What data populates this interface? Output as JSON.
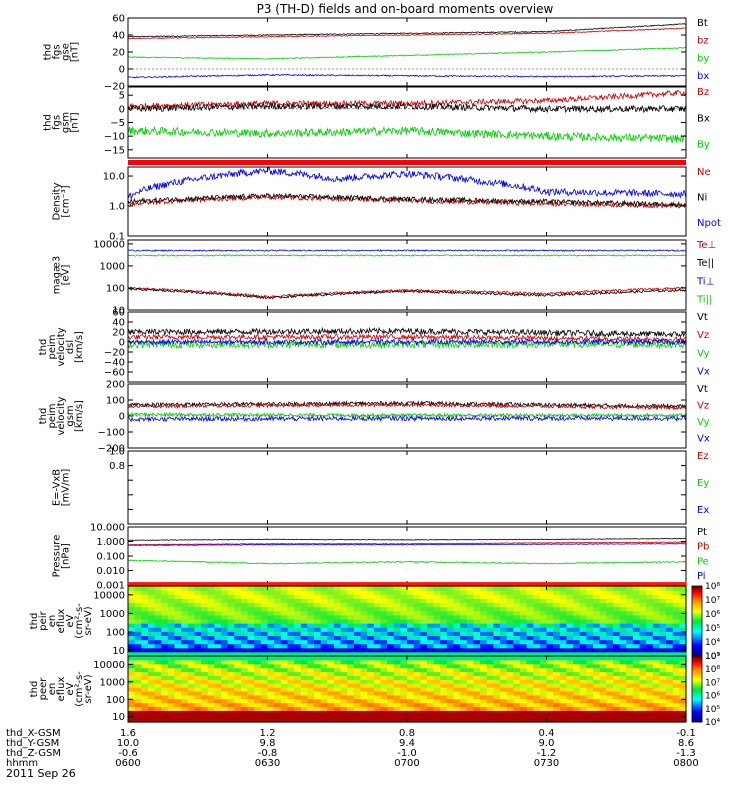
{
  "title": "P3 (TH-D) fields and on-board moments overview",
  "date_label": "2011 Sep 26",
  "chart_data": [
    {
      "type": "line",
      "panel_id": "fgs-gse",
      "ylabel": [
        "thd",
        "fgs",
        "gse",
        "[nT]"
      ],
      "ylim": [
        -20,
        60
      ],
      "ticks": [
        -20,
        0,
        20,
        40,
        60
      ],
      "tick_labels": [
        "−20",
        "0",
        "20",
        "40",
        "60"
      ],
      "scale": "linear",
      "series": [
        {
          "name": "Bt",
          "color": "#000000",
          "anchors": [
            [
              0,
              38
            ],
            [
              30,
              40
            ],
            [
              60,
              42
            ],
            [
              90,
              44
            ],
            [
              120,
              53
            ]
          ],
          "noise": 0.6
        },
        {
          "name": "bz",
          "color": "#d00000",
          "anchors": [
            [
              0,
              36
            ],
            [
              30,
              38
            ],
            [
              60,
              40
            ],
            [
              90,
              42
            ],
            [
              120,
              48
            ]
          ],
          "noise": 0.6
        },
        {
          "name": "by",
          "color": "#00d000",
          "anchors": [
            [
              0,
              14
            ],
            [
              30,
              12
            ],
            [
              60,
              16
            ],
            [
              90,
              20
            ],
            [
              120,
              25
            ]
          ],
          "noise": 0.6
        },
        {
          "name": "bx",
          "color": "#0000ff",
          "anchors": [
            [
              0,
              -10
            ],
            [
              30,
              -7
            ],
            [
              60,
              -8
            ],
            [
              90,
              -9
            ],
            [
              120,
              -8
            ]
          ],
          "noise": 0.8
        }
      ]
    },
    {
      "type": "line",
      "panel_id": "fgs-gsm",
      "ylabel": [
        "thd",
        "fgs",
        "gsm",
        "[nT]"
      ],
      "ylim": [
        -18,
        8
      ],
      "ticks": [
        -15,
        -10,
        -5,
        0,
        5
      ],
      "tick_labels": [
        "−15",
        "−10",
        "−5",
        "0",
        "5"
      ],
      "scale": "linear",
      "series": [
        {
          "name": "Bz",
          "color": "#d00000",
          "anchors": [
            [
              0,
              1
            ],
            [
              30,
              2
            ],
            [
              60,
              2
            ],
            [
              90,
              3
            ],
            [
              120,
              6
            ]
          ],
          "noise": 1.0
        },
        {
          "name": "Bx",
          "color": "#000000",
          "anchors": [
            [
              0,
              0
            ],
            [
              30,
              1
            ],
            [
              60,
              1
            ],
            [
              90,
              0
            ],
            [
              120,
              0
            ]
          ],
          "noise": 1.2
        },
        {
          "name": "By",
          "color": "#00d000",
          "anchors": [
            [
              0,
              -8
            ],
            [
              30,
              -9
            ],
            [
              60,
              -8
            ],
            [
              90,
              -10
            ],
            [
              120,
              -11
            ]
          ],
          "noise": 1.5
        }
      ]
    },
    {
      "type": "line",
      "panel_id": "density",
      "ylabel": [
        "Density",
        "[cm⁻³]"
      ],
      "ylim": [
        0.1,
        20
      ],
      "ticks": [
        0.1,
        1.0,
        10.0
      ],
      "tick_labels": [
        "0.1",
        "1.0",
        "10.0"
      ],
      "scale": "log",
      "series": [
        {
          "name": "Ne",
          "color": "#d00000",
          "anchors": [
            [
              0,
              1.2
            ],
            [
              30,
              2.0
            ],
            [
              60,
              1.5
            ],
            [
              90,
              1.2
            ],
            [
              120,
              1.0
            ]
          ],
          "noise": 0.08
        },
        {
          "name": "Ni",
          "color": "#000000",
          "anchors": [
            [
              0,
              1.4
            ],
            [
              30,
              2.2
            ],
            [
              60,
              1.7
            ],
            [
              90,
              1.4
            ],
            [
              120,
              1.1
            ]
          ],
          "noise": 0.08
        },
        {
          "name": "Npot",
          "color": "#0000ff",
          "anchors": [
            [
              0,
              2
            ],
            [
              15,
              8
            ],
            [
              30,
              15
            ],
            [
              45,
              8
            ],
            [
              60,
              12
            ],
            [
              75,
              7
            ],
            [
              90,
              3
            ],
            [
              120,
              2.5
            ]
          ],
          "noise": 0.12
        }
      ]
    },
    {
      "type": "line",
      "panel_id": "temperature",
      "ylabel": [
        "magæ3",
        "[eV]"
      ],
      "ylim": [
        10,
        15000
      ],
      "ticks": [
        10,
        100,
        1000,
        10000
      ],
      "tick_labels": [
        "10",
        "100",
        "1000",
        "10000"
      ],
      "scale": "log",
      "series": [
        {
          "name": "Te⊥",
          "color": "#d00000",
          "anchors": [
            [
              0,
              100
            ],
            [
              30,
              40
            ],
            [
              60,
              80
            ],
            [
              90,
              55
            ],
            [
              120,
              100
            ]
          ],
          "noise": 0.05
        },
        {
          "name": "Te||",
          "color": "#000000",
          "anchors": [
            [
              0,
              90
            ],
            [
              30,
              35
            ],
            [
              60,
              70
            ],
            [
              90,
              45
            ],
            [
              120,
              80
            ]
          ],
          "noise": 0.05
        },
        {
          "name": "Ti⊥",
          "color": "#0000ff",
          "anchors": [
            [
              0,
              5000
            ],
            [
              30,
              5000
            ],
            [
              60,
              5000
            ],
            [
              90,
              5000
            ],
            [
              120,
              5000
            ]
          ],
          "noise": 0.03
        },
        {
          "name": "Ti||",
          "color": "#00d000",
          "anchors": [
            [
              0,
              3000
            ],
            [
              30,
              3000
            ],
            [
              60,
              3000
            ],
            [
              90,
              3000
            ],
            [
              120,
              3000
            ]
          ],
          "noise": 0.03
        }
      ]
    },
    {
      "type": "line",
      "panel_id": "peim-dsl",
      "ylabel": [
        "thd",
        "peim",
        "velocity",
        "dsl",
        "[km/s]"
      ],
      "ylim": [
        -80,
        60
      ],
      "ticks": [
        -60,
        -40,
        -20,
        0,
        20,
        40,
        60
      ],
      "tick_labels": [
        "−60",
        "−40",
        "−20",
        "0",
        "20",
        "40",
        "60"
      ],
      "scale": "linear",
      "series": [
        {
          "name": "Vt",
          "color": "#000000",
          "anchors": [
            [
              0,
              20
            ],
            [
              60,
              22
            ],
            [
              120,
              15
            ]
          ],
          "noise": 6
        },
        {
          "name": "Vz",
          "color": "#d00000",
          "anchors": [
            [
              0,
              10
            ],
            [
              60,
              10
            ],
            [
              120,
              5
            ]
          ],
          "noise": 5
        },
        {
          "name": "Vy",
          "color": "#00d000",
          "anchors": [
            [
              0,
              -5
            ],
            [
              60,
              -5
            ],
            [
              120,
              -5
            ]
          ],
          "noise": 7
        },
        {
          "name": "Vx",
          "color": "#0000ff",
          "anchors": [
            [
              0,
              0
            ],
            [
              60,
              0
            ],
            [
              120,
              0
            ]
          ],
          "noise": 5
        }
      ]
    },
    {
      "type": "line",
      "panel_id": "peim-gsm",
      "ylabel": [
        "thd",
        "peim",
        "velocity",
        "gsm",
        "[km/s]"
      ],
      "ylim": [
        -200,
        200
      ],
      "ticks": [
        -200,
        -100,
        0,
        100,
        200
      ],
      "tick_labels": [
        "−200",
        "−100",
        "0",
        "100",
        "200"
      ],
      "scale": "linear",
      "series": [
        {
          "name": "Vt",
          "color": "#000000",
          "anchors": [
            [
              0,
              70
            ],
            [
              60,
              80
            ],
            [
              120,
              60
            ]
          ],
          "noise": 12
        },
        {
          "name": "Vz",
          "color": "#d00000",
          "anchors": [
            [
              0,
              60
            ],
            [
              60,
              70
            ],
            [
              120,
              50
            ]
          ],
          "noise": 10
        },
        {
          "name": "Vy",
          "color": "#00d000",
          "anchors": [
            [
              0,
              10
            ],
            [
              60,
              5
            ],
            [
              120,
              5
            ]
          ],
          "noise": 10
        },
        {
          "name": "Vx",
          "color": "#0000ff",
          "anchors": [
            [
              0,
              -20
            ],
            [
              60,
              -15
            ],
            [
              120,
              -15
            ]
          ],
          "noise": 14
        }
      ]
    },
    {
      "type": "line",
      "panel_id": "efield",
      "ylabel": [
        "E=-VxB",
        "[mV/m]"
      ],
      "ylim": [
        0,
        1
      ],
      "ticks": [
        0,
        0.2,
        0.4,
        0.6,
        0.8,
        1.0
      ],
      "tick_labels": [
        "",
        "",
        "",
        "",
        "0.8",
        "1.0"
      ],
      "scale": "linear",
      "series": [
        {
          "name": "Ez",
          "color": "#d00000",
          "anchors": [],
          "noise": 0
        },
        {
          "name": "Ey",
          "color": "#00d000",
          "anchors": [],
          "noise": 0
        },
        {
          "name": "Ex",
          "color": "#0000ff",
          "anchors": [],
          "noise": 0
        }
      ]
    },
    {
      "type": "line",
      "panel_id": "pressure",
      "ylabel": [
        "Pressure",
        "[nPa]"
      ],
      "ylim": [
        0.001,
        10
      ],
      "ticks": [
        0.001,
        0.01,
        0.1,
        1.0,
        10.0
      ],
      "tick_labels": [
        "0.001",
        "0.010",
        "0.100",
        "1.000",
        "10.000"
      ],
      "scale": "log",
      "series": [
        {
          "name": "Pt",
          "color": "#000000",
          "anchors": [
            [
              0,
              1.2
            ],
            [
              30,
              1.4
            ],
            [
              60,
              1.3
            ],
            [
              90,
              1.4
            ],
            [
              120,
              1.6
            ]
          ],
          "noise": 0.02
        },
        {
          "name": "Pb",
          "color": "#d00000",
          "anchors": [
            [
              0,
              0.6
            ],
            [
              30,
              0.7
            ],
            [
              60,
              0.7
            ],
            [
              90,
              0.8
            ],
            [
              120,
              0.9
            ]
          ],
          "noise": 0.02
        },
        {
          "name": "Pe",
          "color": "#00d000",
          "anchors": [
            [
              0,
              0.05
            ],
            [
              30,
              0.03
            ],
            [
              60,
              0.04
            ],
            [
              90,
              0.03
            ],
            [
              120,
              0.04
            ]
          ],
          "noise": 0.04
        },
        {
          "name": "Pi",
          "color": "#0000ff",
          "anchors": [
            [
              0,
              0.55
            ],
            [
              30,
              0.6
            ],
            [
              60,
              0.6
            ],
            [
              90,
              0.65
            ],
            [
              120,
              0.7
            ]
          ],
          "noise": 0.02
        }
      ]
    },
    {
      "type": "heatmap",
      "panel_id": "peir",
      "ylabel": [
        "thd",
        "peir",
        "en",
        "eflux",
        "eV",
        "(cm²-s-",
        "sr-eV)"
      ],
      "ylim": [
        5,
        30000
      ],
      "ticks": [
        10,
        100,
        1000,
        10000
      ],
      "tick_labels": [
        "10",
        "100",
        "1000",
        "10000"
      ],
      "scale": "log",
      "colorbar": {
        "min_exp": 3,
        "max_exp": 8,
        "labels": [
          "10³",
          "10⁴",
          "10⁵",
          "10⁶",
          "10⁷",
          "10⁸"
        ]
      }
    },
    {
      "type": "heatmap",
      "panel_id": "peer",
      "ylabel": [
        "thd",
        "peer",
        "en",
        "eflux",
        "eV",
        "(cm²-s-",
        "sr-eV)"
      ],
      "ylim": [
        5,
        30000
      ],
      "ticks": [
        10,
        100,
        1000,
        10000
      ],
      "tick_labels": [
        "10",
        "100",
        "1000",
        "10000"
      ],
      "scale": "log",
      "colorbar": {
        "min_exp": 4,
        "max_exp": 9,
        "labels": [
          "10⁴",
          "10⁵",
          "10⁶",
          "10⁷",
          "10⁸",
          "10⁹"
        ]
      }
    }
  ],
  "time_axis": {
    "rows": [
      {
        "label": "thd_X-GSM",
        "values": [
          "1.6",
          "1.2",
          "0.8",
          "0.4",
          "-0.1"
        ]
      },
      {
        "label": "thd_Y-GSM",
        "values": [
          "10.0",
          "9.8",
          "9.4",
          "9.0",
          "8.6"
        ]
      },
      {
        "label": "thd_Z-GSM",
        "values": [
          "-0.6",
          "-0.8",
          "-1.0",
          "-1.2",
          "-1.3"
        ]
      },
      {
        "label": "hhmm",
        "values": [
          "0600",
          "0630",
          "0700",
          "0730",
          "0800"
        ]
      }
    ],
    "minutes": [
      0,
      30,
      60,
      90,
      120
    ]
  },
  "colors": {
    "red": "#d00000",
    "green": "#00d000",
    "blue": "#0000ff",
    "black": "#000000"
  }
}
